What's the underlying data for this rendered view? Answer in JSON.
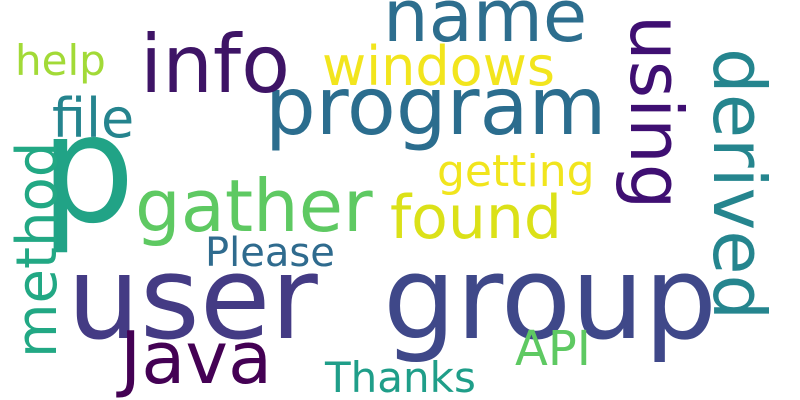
{
  "words": {
    "p": "p",
    "user": "user",
    "group": "group",
    "program": "program",
    "info": "info",
    "name": "name",
    "gather": "gather",
    "found": "found",
    "windows": "windows",
    "java": "Java",
    "api": "API",
    "thanks": "Thanks",
    "please": "Please",
    "file": "file",
    "help": "help",
    "getting": "getting",
    "using": "using",
    "derived": "derived",
    "method": "method"
  }
}
